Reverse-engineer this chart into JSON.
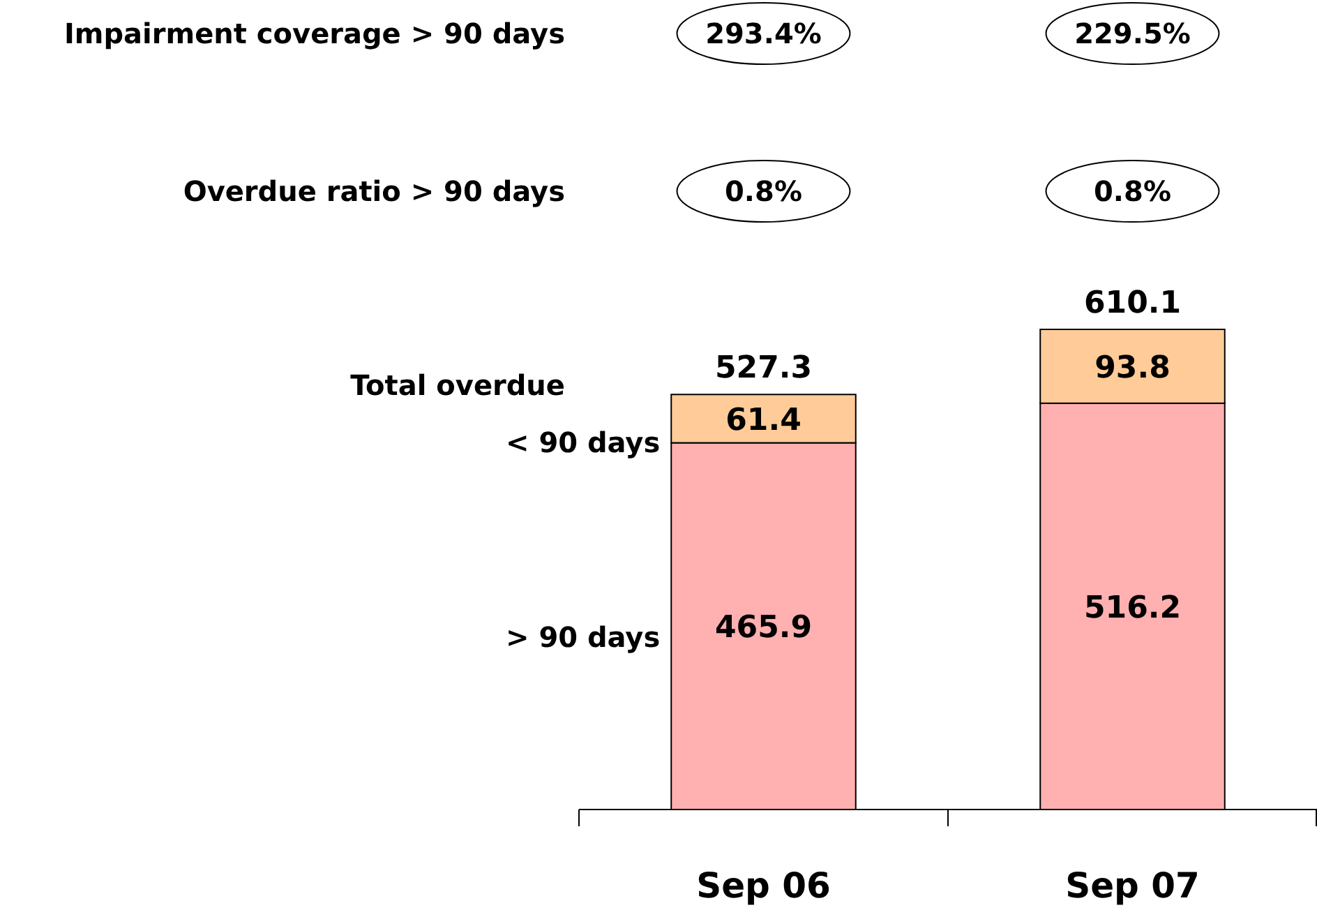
{
  "chart_data": {
    "type": "bar",
    "stacked": true,
    "categories": [
      "Sep 06",
      "Sep 07"
    ],
    "series": [
      {
        "name": "> 90 days",
        "color": "#ffb0b0",
        "values": [
          465.9,
          516.2
        ]
      },
      {
        "name": "< 90 days",
        "color": "#ffcc99",
        "values": [
          61.4,
          93.8
        ]
      }
    ],
    "data_labels": true,
    "totals": [
      "527.3",
      "610.1"
    ],
    "annotations": [
      "Impairment coverage > 90 days",
      "293.4%",
      "229.5%",
      "Overdue ratio > 90 days",
      "0.8%",
      "0.8%",
      "Total overdue"
    ],
    "legend": "left"
  }
}
